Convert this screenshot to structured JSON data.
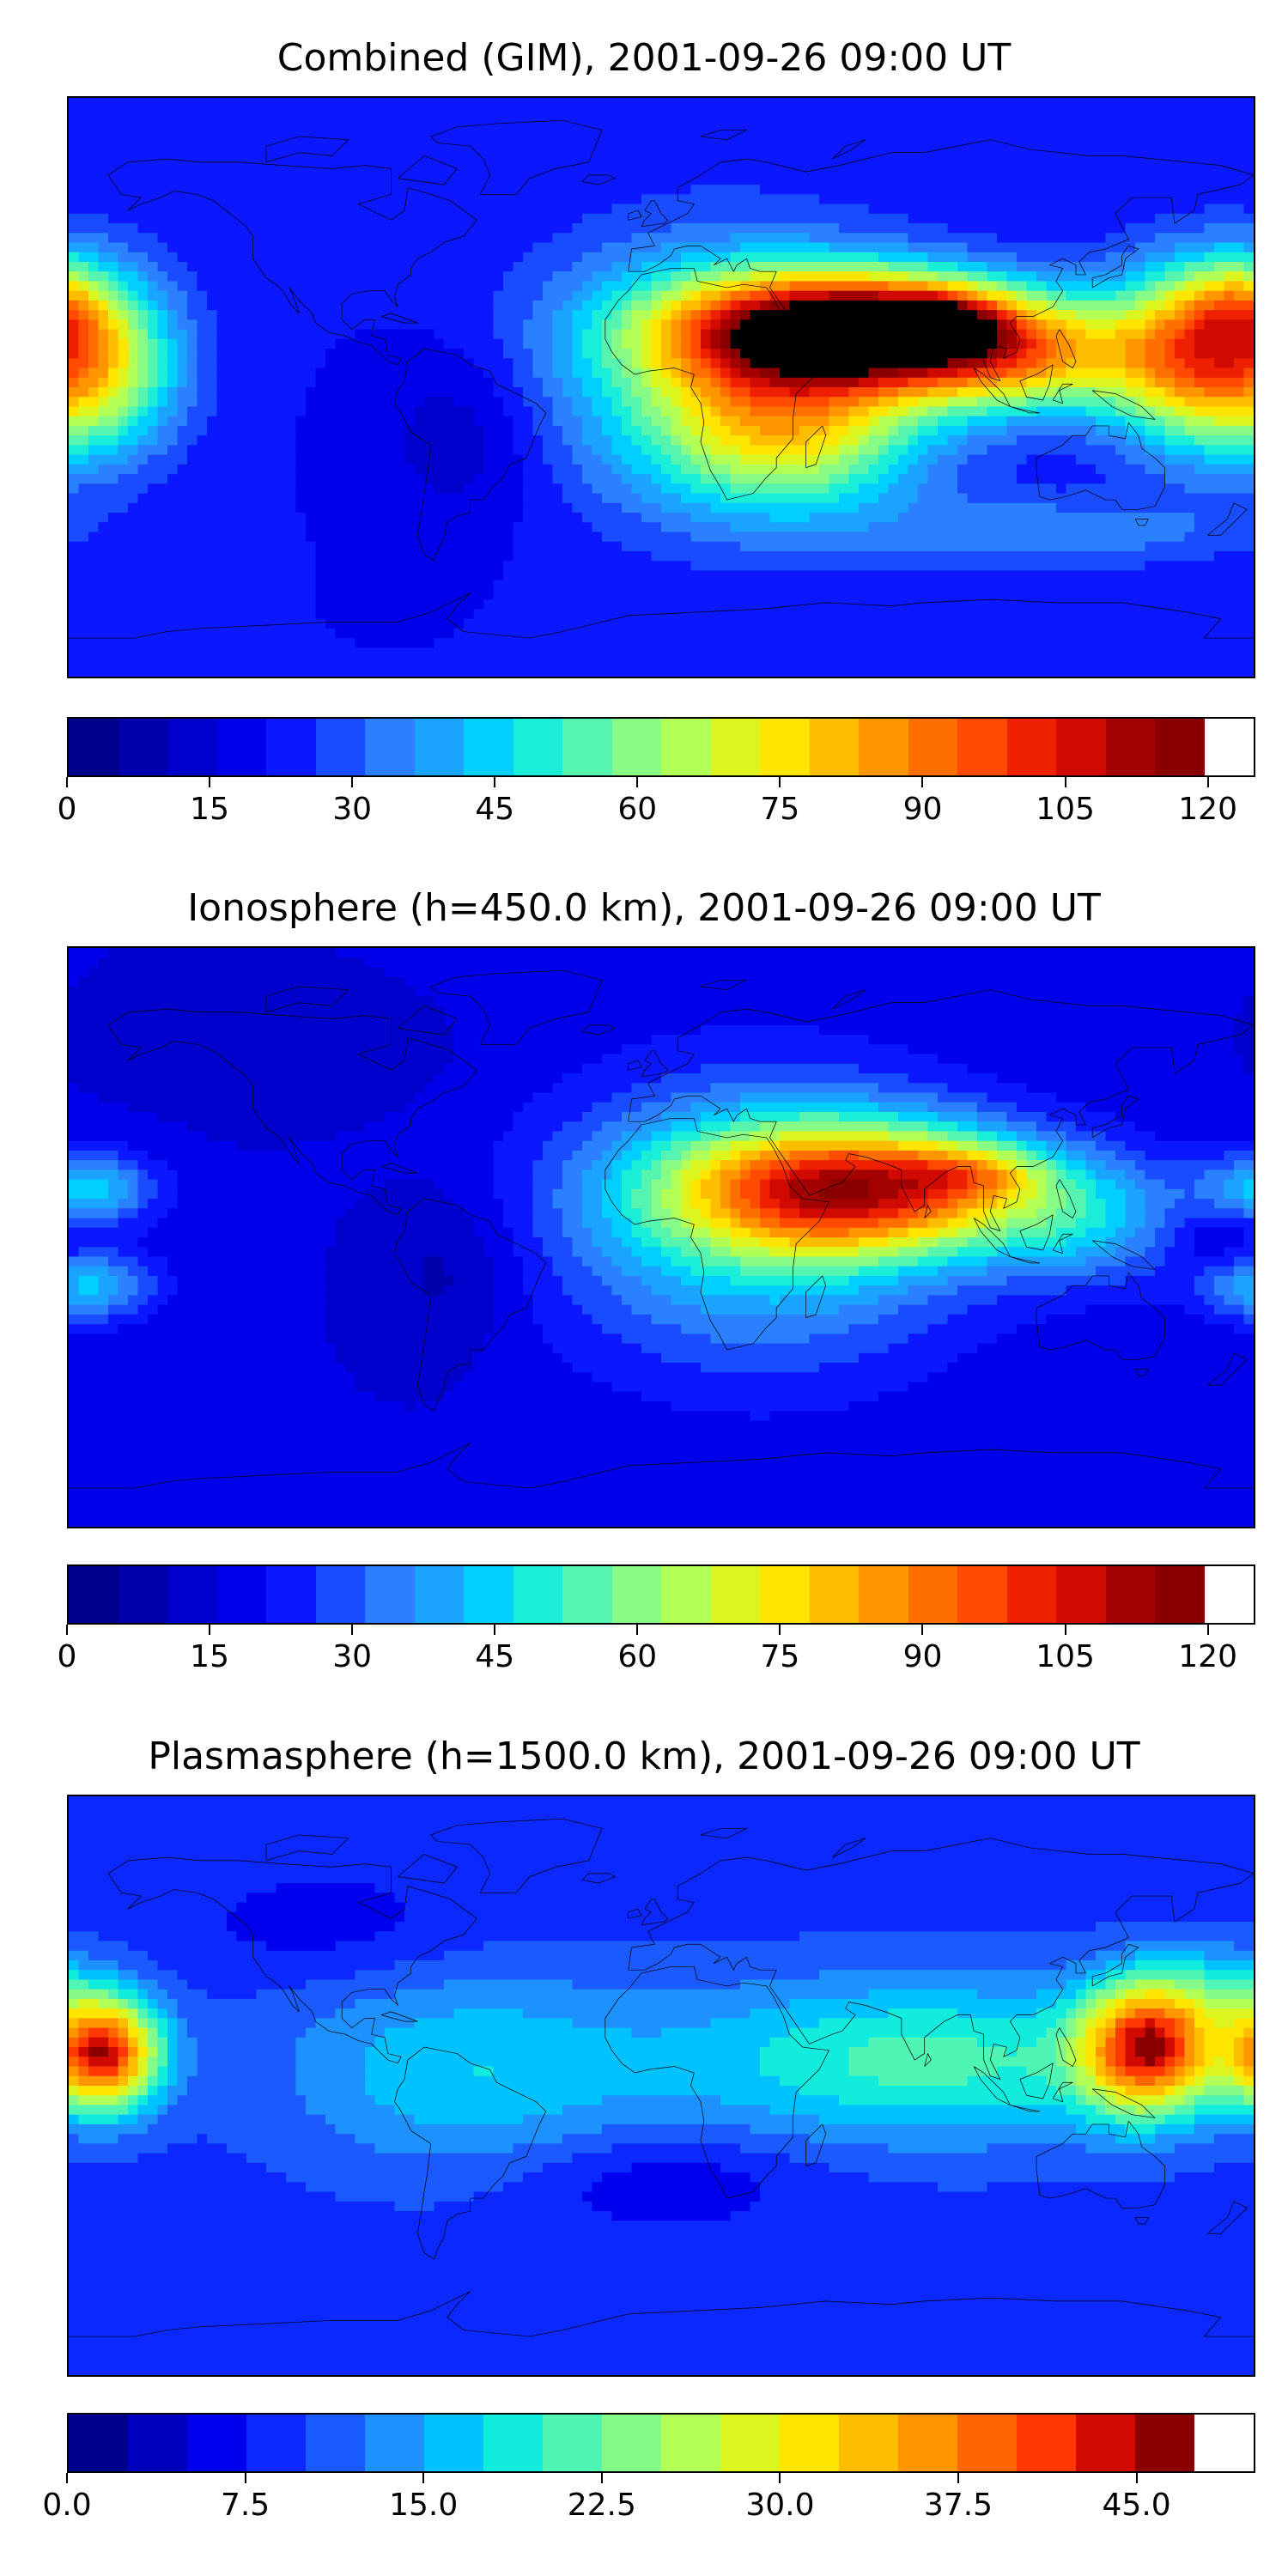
{
  "colors": {
    "combined": [
      "#00008f",
      "#0000ad",
      "#0000cc",
      "#0000ea",
      "#0a17ff",
      "#1a4cff",
      "#2a80ff",
      "#1aa3ff",
      "#00cfff",
      "#1aeed8",
      "#55f5b0",
      "#88fa86",
      "#b2ff56",
      "#dcf51e",
      "#ffe500",
      "#ffbd00",
      "#ff9600",
      "#ff6f00",
      "#ff4a00",
      "#ee2000",
      "#d00a00",
      "#a30000",
      "#8a0000"
    ],
    "ionosphere": [
      "#00008f",
      "#0000ad",
      "#0000cc",
      "#0000ea",
      "#0a17ff",
      "#1a4cff",
      "#2a80ff",
      "#1aa3ff",
      "#00cfff",
      "#1aeed8",
      "#55f5b0",
      "#88fa86",
      "#b2ff56",
      "#dcf51e",
      "#ffe500",
      "#ffbd00",
      "#ff9600",
      "#ff6f00",
      "#ff4a00",
      "#ee2000",
      "#d00a00",
      "#a30000",
      "#8a0000"
    ],
    "plasmasphere": [
      "#00008f",
      "#0000c0",
      "#0000ee",
      "#0a28ff",
      "#1a5aff",
      "#1d92ff",
      "#00c2ff",
      "#12ecdc",
      "#4ef5b4",
      "#86fa89",
      "#b2ff56",
      "#dcf51e",
      "#ffe500",
      "#ffbd00",
      "#ff9600",
      "#ff6500",
      "#ff3700",
      "#d00a00",
      "#8a0000"
    ],
    "coast": "#000000"
  },
  "chart_data": [
    {
      "type": "heatmap",
      "title": "Combined (GIM), 2001-09-26 09:00 UT",
      "colorbar": {
        "levels": [
          0,
          5,
          10,
          15,
          20,
          25,
          30,
          35,
          40,
          45,
          50,
          55,
          60,
          65,
          70,
          75,
          80,
          85,
          90,
          95,
          100,
          105,
          110,
          115
        ],
        "ticks": [
          "0",
          "15",
          "30",
          "45",
          "60",
          "75",
          "90",
          "105",
          "120"
        ],
        "tick_values": [
          0,
          15,
          30,
          45,
          60,
          75,
          90,
          105,
          120
        ],
        "range": [
          0,
          125
        ]
      },
      "xlim": [
        -180,
        180
      ],
      "ylim": [
        -90,
        90
      ],
      "field": {
        "background": 20,
        "blobs": [
          {
            "lon": 60,
            "lat": 18,
            "value": 98,
            "sx": 38,
            "sy": 12
          },
          {
            "lon": 85,
            "lat": 20,
            "value": 30,
            "sx": 12,
            "sy": 6
          },
          {
            "lon": 110,
            "lat": 8,
            "value": 40,
            "sx": 28,
            "sy": 12
          },
          {
            "lon": 40,
            "lat": -12,
            "value": 36,
            "sx": 28,
            "sy": 18
          },
          {
            "lon": 20,
            "lat": 5,
            "value": 30,
            "sx": 40,
            "sy": 30
          },
          {
            "lon": 160,
            "lat": 10,
            "value": 50,
            "sx": 18,
            "sy": 20
          },
          {
            "lon": -172,
            "lat": 8,
            "value": 48,
            "sx": 18,
            "sy": 20
          },
          {
            "lon": 175,
            "lat": 25,
            "value": 20,
            "sx": 12,
            "sy": 10
          },
          {
            "lon": -60,
            "lat": -15,
            "value": -10,
            "sx": 18,
            "sy": 20
          },
          {
            "lon": 120,
            "lat": -45,
            "value": 14,
            "sx": 40,
            "sy": 8
          }
        ]
      }
    },
    {
      "type": "heatmap",
      "title": "Ionosphere  (h=450.0 km), 2001-09-26 09:00 UT",
      "colorbar": {
        "levels": [
          0,
          5,
          10,
          15,
          20,
          25,
          30,
          35,
          40,
          45,
          50,
          55,
          60,
          65,
          70,
          75,
          80,
          85,
          90,
          95,
          100,
          105,
          110,
          115
        ],
        "ticks": [
          "0",
          "15",
          "30",
          "45",
          "60",
          "75",
          "90",
          "105",
          "120"
        ],
        "tick_values": [
          0,
          15,
          30,
          45,
          60,
          75,
          90,
          105,
          120
        ],
        "range": [
          0,
          125
        ]
      },
      "xlim": [
        -180,
        180
      ],
      "ylim": [
        -90,
        90
      ],
      "field": {
        "background": 15,
        "blobs": [
          {
            "lon": 60,
            "lat": 15,
            "value": 72,
            "sx": 38,
            "sy": 14
          },
          {
            "lon": 95,
            "lat": 20,
            "value": 20,
            "sx": 15,
            "sy": 6
          },
          {
            "lon": 30,
            "lat": 5,
            "value": 30,
            "sx": 45,
            "sy": 32
          },
          {
            "lon": 130,
            "lat": 5,
            "value": 20,
            "sx": 22,
            "sy": 14
          },
          {
            "lon": -175,
            "lat": 15,
            "value": 28,
            "sx": 15,
            "sy": 8
          },
          {
            "lon": -175,
            "lat": -15,
            "value": 26,
            "sx": 15,
            "sy": 8
          },
          {
            "lon": 170,
            "lat": 0,
            "value": -8,
            "sx": 10,
            "sy": 8
          },
          {
            "lon": -65,
            "lat": -10,
            "value": -8,
            "sx": 15,
            "sy": 18
          },
          {
            "lon": -110,
            "lat": 55,
            "value": -5,
            "sx": 25,
            "sy": 10
          }
        ]
      }
    },
    {
      "type": "heatmap",
      "title": "Plasmasphere (h=1500.0 km), 2001-09-26 09:00 UT",
      "colorbar": {
        "levels": [
          0,
          2.5,
          5,
          7.5,
          10,
          12.5,
          15,
          17.5,
          20,
          22.5,
          25,
          27.5,
          30,
          32.5,
          35,
          37.5,
          40,
          42.5,
          45,
          47.5
        ],
        "ticks": [
          "0.0",
          "7.5",
          "15.0",
          "22.5",
          "30.0",
          "37.5",
          "45.0"
        ],
        "tick_values": [
          0,
          7.5,
          15,
          22.5,
          30,
          37.5,
          45
        ],
        "range": [
          0,
          50
        ]
      },
      "xlim": [
        -180,
        180
      ],
      "ylim": [
        -90,
        90
      ],
      "field": {
        "background": 9,
        "blobs": [
          {
            "lon": 148,
            "lat": 12,
            "value": 32,
            "sx": 14,
            "sy": 14
          },
          {
            "lon": -170,
            "lat": 10,
            "value": 34,
            "sx": 12,
            "sy": 12
          },
          {
            "lon": 80,
            "lat": 8,
            "value": 12,
            "sx": 55,
            "sy": 18
          },
          {
            "lon": -60,
            "lat": 5,
            "value": 8,
            "sx": 40,
            "sy": 22
          },
          {
            "lon": 0,
            "lat": -30,
            "value": -4,
            "sx": 30,
            "sy": 10
          },
          {
            "lon": -100,
            "lat": 50,
            "value": -3,
            "sx": 30,
            "sy": 12
          },
          {
            "lon": 170,
            "lat": 30,
            "value": 6,
            "sx": 15,
            "sy": 10
          }
        ]
      }
    }
  ]
}
